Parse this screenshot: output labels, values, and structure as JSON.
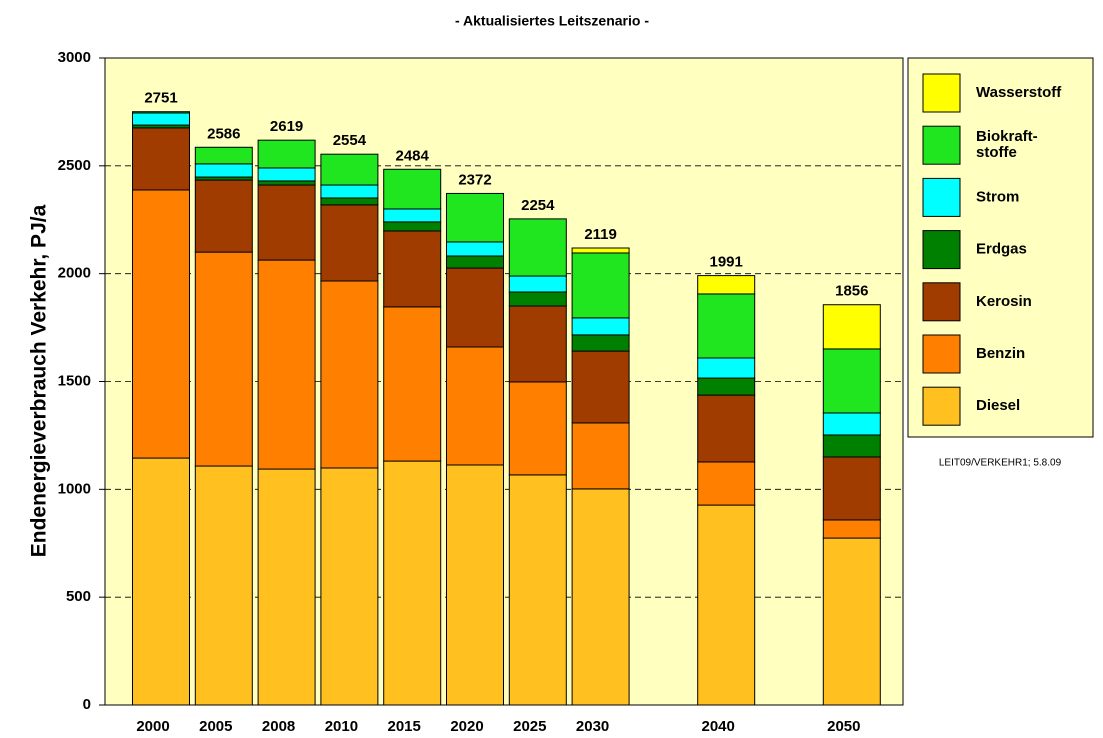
{
  "chart_data": {
    "type": "stacked_bar",
    "title": "- Aktualisiertes Leitszenario -",
    "y_label": "Endenergieverbrauch Verkehr, PJ/a",
    "note": "LEIT09/VERKEHR1; 5.8.09",
    "categories": [
      "2000",
      "2005",
      "2008",
      "2010",
      "2015",
      "2020",
      "2025",
      "2030",
      "2040",
      "2050"
    ],
    "series": [
      {
        "name": "Diesel",
        "color": "#ffc020",
        "values": [
          1145,
          1108,
          1094,
          1099,
          1131,
          1113,
          1067,
          1002,
          927,
          774
        ]
      },
      {
        "name": "Benzin",
        "color": "#ff8000",
        "values": [
          1243,
          992,
          969,
          867,
          715,
          547,
          431,
          306,
          200,
          84
        ]
      },
      {
        "name": "Kerosin",
        "color": "#a03c00",
        "values": [
          288,
          334,
          348,
          353,
          352,
          366,
          352,
          333,
          310,
          292
        ]
      },
      {
        "name": "Erdgas",
        "color": "#008000",
        "values": [
          13,
          14,
          19,
          32,
          42,
          56,
          65,
          75,
          79,
          102
        ]
      },
      {
        "name": "Strom",
        "color": "#00ffff",
        "values": [
          56,
          61,
          60,
          60,
          60,
          65,
          74,
          79,
          93,
          102
        ]
      },
      {
        "name": "Biokraft-\nstoffe",
        "color": "#20e620",
        "values": [
          6,
          77,
          129,
          143,
          184,
          225,
          265,
          301,
          297,
          297
        ]
      },
      {
        "name": "Wasserstoff",
        "color": "#ffff00",
        "values": [
          0,
          0,
          0,
          0,
          0,
          0,
          0,
          23,
          85,
          205
        ]
      }
    ],
    "totals": [
      2751,
      2586,
      2619,
      2554,
      2484,
      2372,
      2254,
      2119,
      1991,
      1856
    ],
    "ylim": [
      0,
      3000
    ],
    "yticks": [
      0,
      500,
      1000,
      1500,
      2000,
      2500,
      3000
    ],
    "grid": true,
    "legend": "right"
  }
}
